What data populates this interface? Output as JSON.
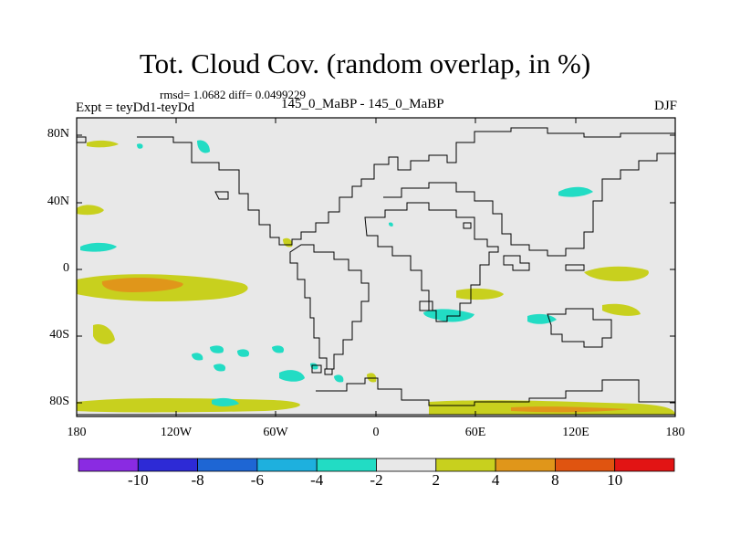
{
  "title": "Tot. Cloud Cov. (random overlap, in %)",
  "stats": "rmsd= 1.0682  diff= 0.0499229",
  "expt": "Expt = teyDd1-teyDd",
  "period": "145_0_MaBP - 145_0_MaBP",
  "season": "DJF",
  "lat_ticks": [
    "80N",
    "40N",
    "0",
    "40S",
    "80S"
  ],
  "lon_ticks": [
    "180",
    "120W",
    "60W",
    "0",
    "60E",
    "120E",
    "180"
  ],
  "colorbar": {
    "labels": [
      "-10",
      "-8",
      "-6",
      "-4",
      "-2",
      "2",
      "4",
      "8",
      "10"
    ],
    "colors": [
      "#8a2be2",
      "#2d2ad6",
      "#1e66d4",
      "#1eb0de",
      "#22dcc4",
      "#e8e8e8",
      "#c8d01e",
      "#e0961a",
      "#e05410",
      "#e21414"
    ]
  },
  "colors": {
    "background": "#e8e8e8",
    "coastline": "#000000",
    "positive_small": "#c8d01e",
    "positive_mid": "#e0961a",
    "negative_small": "#22dcc4"
  }
}
